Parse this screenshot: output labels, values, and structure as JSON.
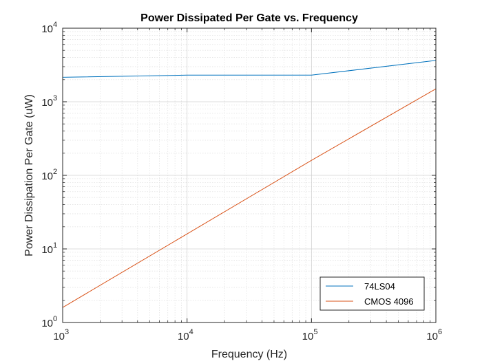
{
  "chart_data": {
    "type": "line",
    "title": "Power Dissipated Per Gate vs. Frequency",
    "xlabel": "Frequency (Hz)",
    "ylabel": "Power Dissipation Per Gate (uW)",
    "x_scale": "log",
    "y_scale": "log",
    "xlim": [
      1000,
      1000000
    ],
    "ylim": [
      1,
      10000
    ],
    "x_ticks": [
      {
        "base": "10",
        "exp": "3",
        "value": 1000
      },
      {
        "base": "10",
        "exp": "4",
        "value": 10000
      },
      {
        "base": "10",
        "exp": "5",
        "value": 100000
      },
      {
        "base": "10",
        "exp": "6",
        "value": 1000000
      }
    ],
    "y_ticks": [
      {
        "base": "10",
        "exp": "0",
        "value": 1
      },
      {
        "base": "10",
        "exp": "1",
        "value": 10
      },
      {
        "base": "10",
        "exp": "2",
        "value": 100
      },
      {
        "base": "10",
        "exp": "3",
        "value": 1000
      },
      {
        "base": "10",
        "exp": "4",
        "value": 10000
      }
    ],
    "grid": true,
    "minor_grid": true,
    "legend_location": "bottom-right",
    "series": [
      {
        "name": "74LS04",
        "color": "#0072BD",
        "x": [
          1000,
          10000,
          100000,
          1000000
        ],
        "y": [
          2150,
          2300,
          2300,
          3650
        ]
      },
      {
        "name": "CMOS 4096",
        "color": "#D95319",
        "x": [
          1000,
          10000,
          100000,
          1000000
        ],
        "y": [
          1.6,
          16,
          160,
          1500
        ]
      }
    ]
  }
}
